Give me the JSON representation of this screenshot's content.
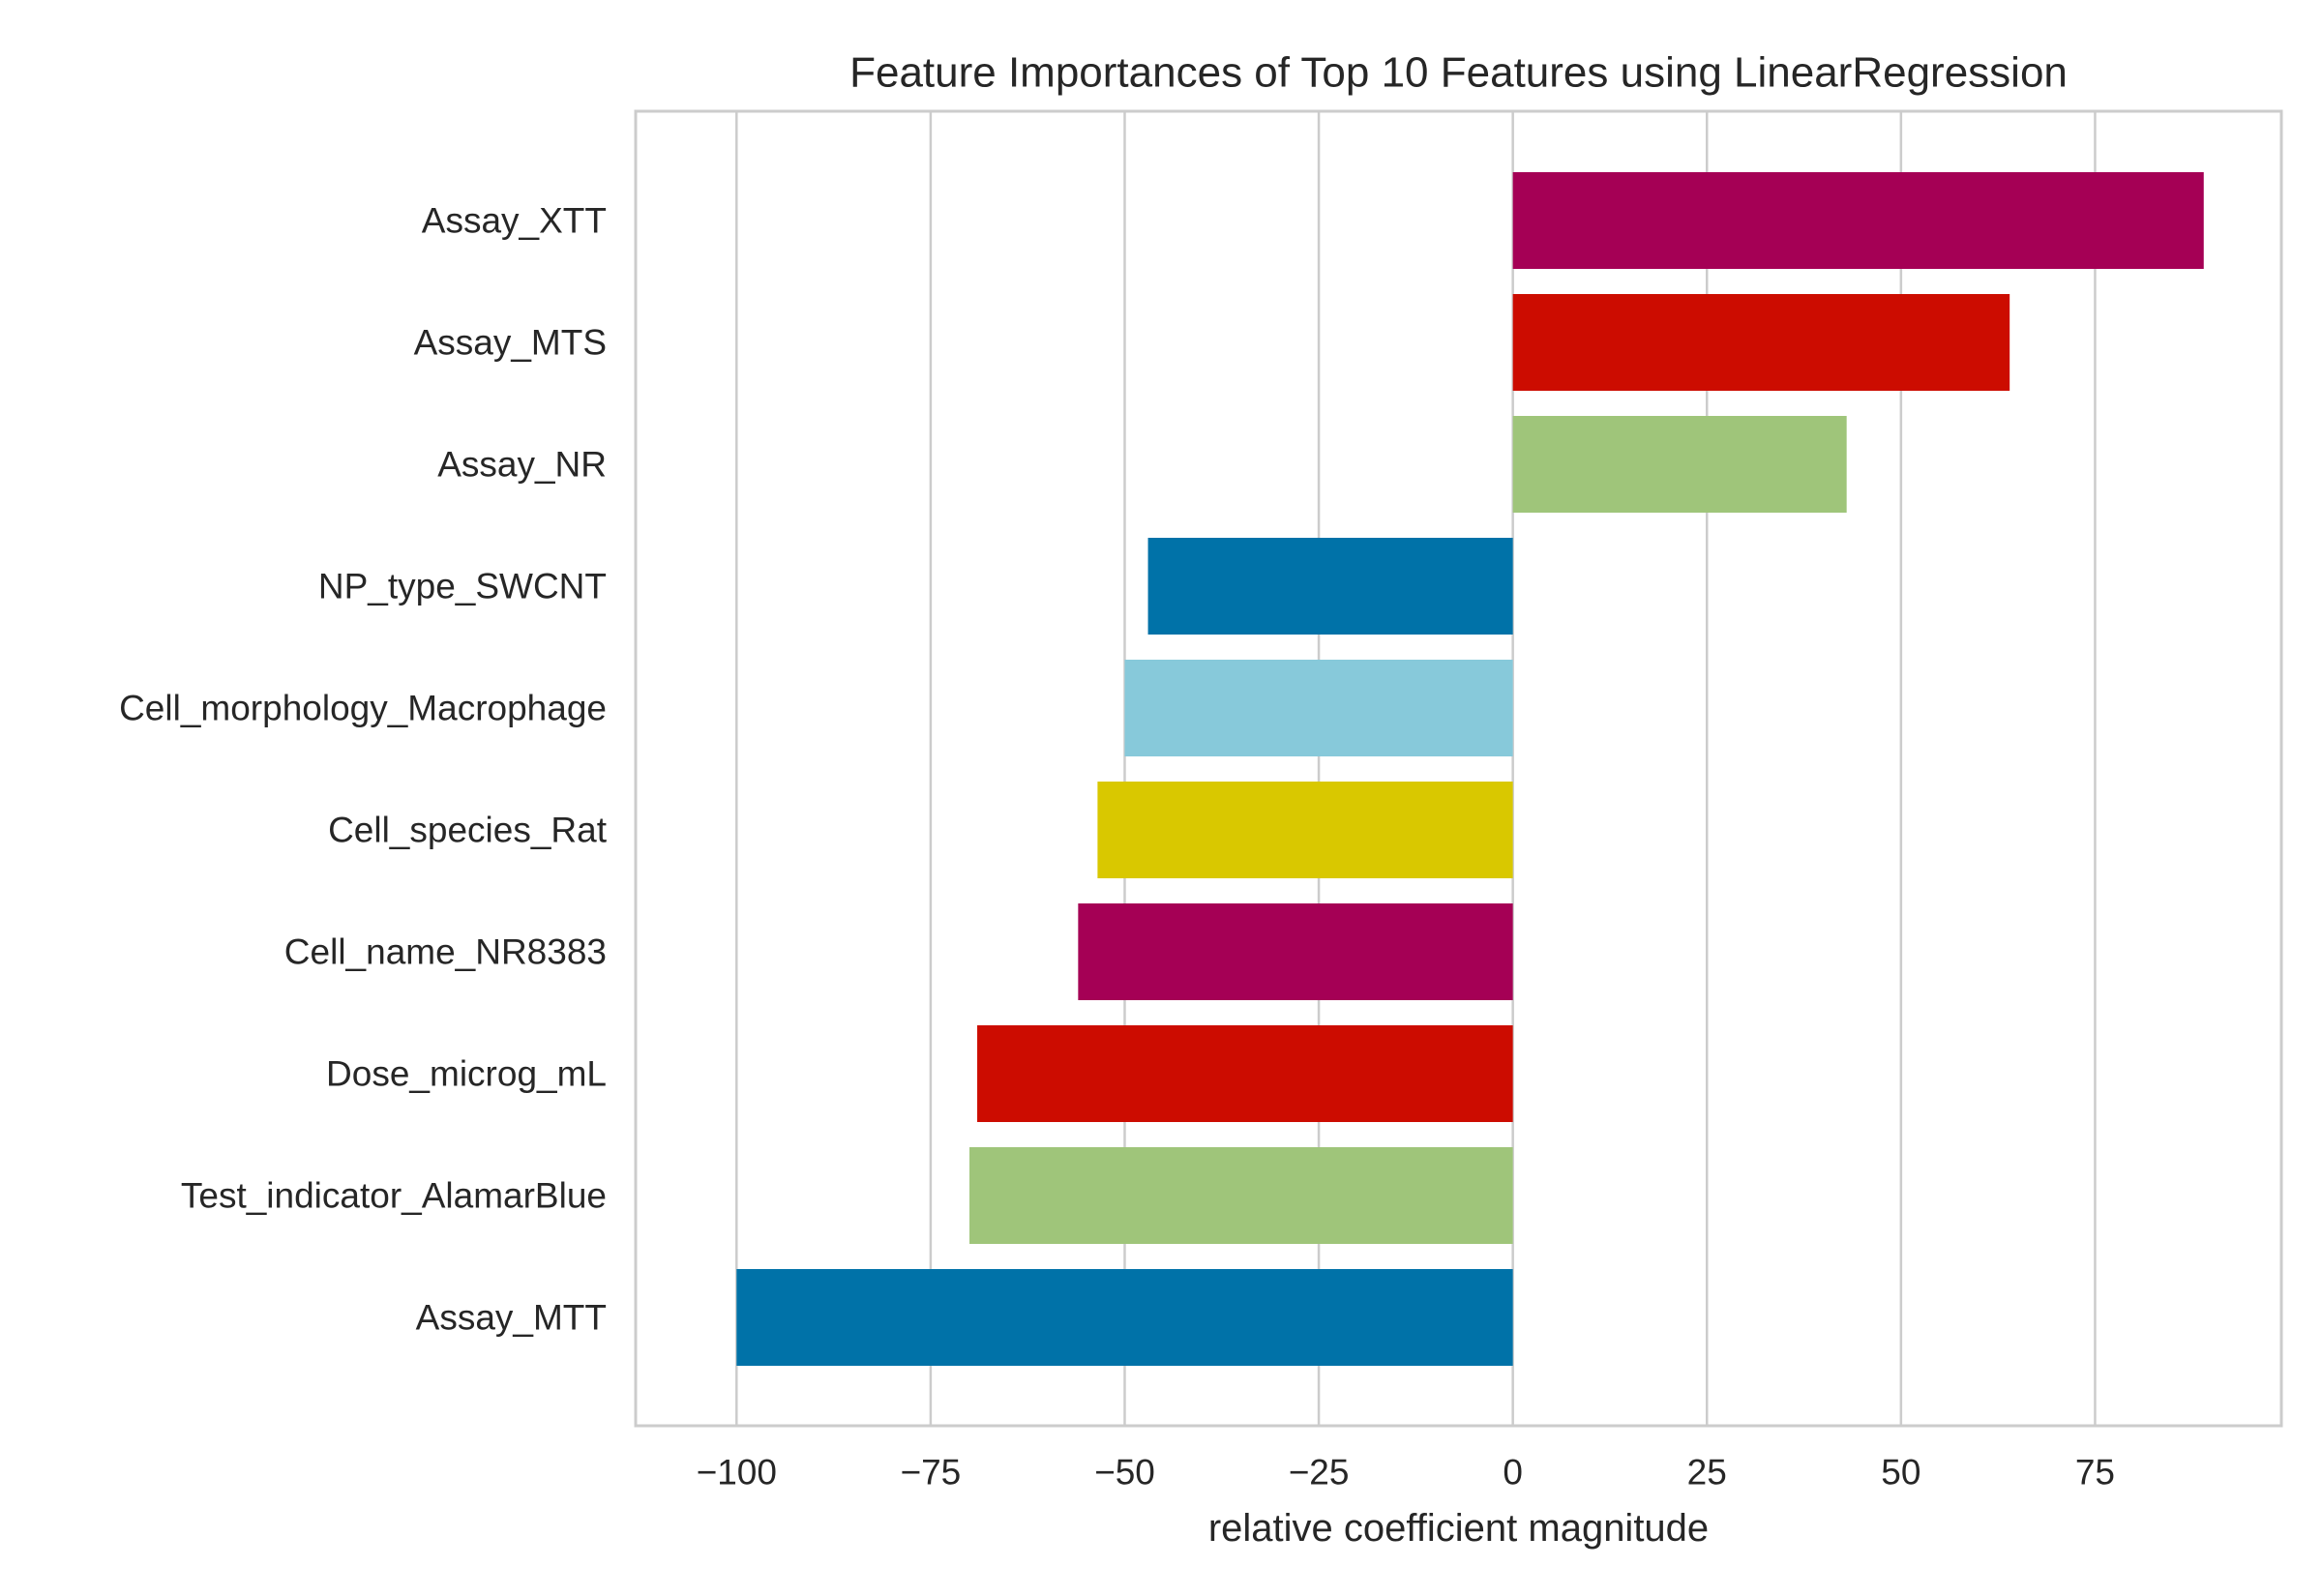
{
  "chart_data": {
    "type": "bar",
    "orientation": "horizontal",
    "title": "Feature Importances of Top 10 Features using LinearRegression",
    "xlabel": "relative coefficient magnitude",
    "ylabel": "",
    "xlim": [
      -113,
      99
    ],
    "xticks": [
      -100,
      -75,
      -50,
      -25,
      0,
      25,
      50,
      75
    ],
    "xtick_labels": [
      "−100",
      "−75",
      "−50",
      "−25",
      "0",
      "25",
      "50",
      "75"
    ],
    "grid": true,
    "categories": [
      "Assay_XTT",
      "Assay_MTS",
      "Assay_NR",
      "NP_type_SWCNT",
      "Cell_morphology_Macrophage",
      "Cell_species_Rat",
      "Cell_name_NR8383",
      "Dose_microg_mL",
      "Test_indicator_AlamarBlue",
      "Assay_MTT"
    ],
    "values": [
      89,
      64,
      43,
      -47,
      -50,
      -53.5,
      -56,
      -69,
      -70,
      -100
    ],
    "colors": [
      "#a50055",
      "#cc0c00",
      "#9fc57a",
      "#0072a8",
      "#87c9da",
      "#d9c800",
      "#a50055",
      "#cc0c00",
      "#9fc57a",
      "#0072a8"
    ]
  }
}
